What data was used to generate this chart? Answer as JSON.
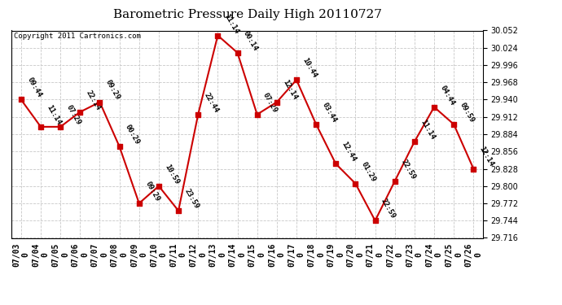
{
  "title": "Barometric Pressure Daily High 20110727",
  "copyright": "Copyright 2011 Cartronics.com",
  "background_color": "#ffffff",
  "plot_bg_color": "#ffffff",
  "grid_color": "#c8c8c8",
  "line_color": "#cc0000",
  "marker_color": "#cc0000",
  "text_color": "#000000",
  "dates": [
    "07/03",
    "07/04",
    "07/05",
    "07/06",
    "07/07",
    "07/08",
    "07/09",
    "07/10",
    "07/11",
    "07/12",
    "07/13",
    "07/14",
    "07/15",
    "07/16",
    "07/17",
    "07/18",
    "07/19",
    "07/20",
    "07/21",
    "07/22",
    "07/23",
    "07/24",
    "07/25",
    "07/26"
  ],
  "values": [
    29.94,
    29.896,
    29.896,
    29.92,
    29.936,
    29.864,
    29.772,
    29.8,
    29.76,
    29.916,
    30.044,
    30.016,
    29.916,
    29.936,
    29.972,
    29.9,
    29.836,
    29.804,
    29.744,
    29.808,
    29.872,
    29.928,
    29.9,
    29.828
  ],
  "annotations": [
    "09:44",
    "11:14",
    "07:29",
    "22:14",
    "09:29",
    "00:29",
    "09:29",
    "10:59",
    "23:59",
    "22:44",
    "11:14",
    "00:14",
    "07:29",
    "12:14",
    "10:44",
    "03:44",
    "12:44",
    "01:29",
    "22:59",
    "22:59",
    "11:14",
    "04:44",
    "09:59",
    "12:14"
  ],
  "ylim_min": 29.716,
  "ylim_max": 30.052,
  "ytick_step": 0.028,
  "title_fontsize": 11,
  "annot_fontsize": 6.5,
  "tick_fontsize": 7,
  "copyright_fontsize": 6.5
}
